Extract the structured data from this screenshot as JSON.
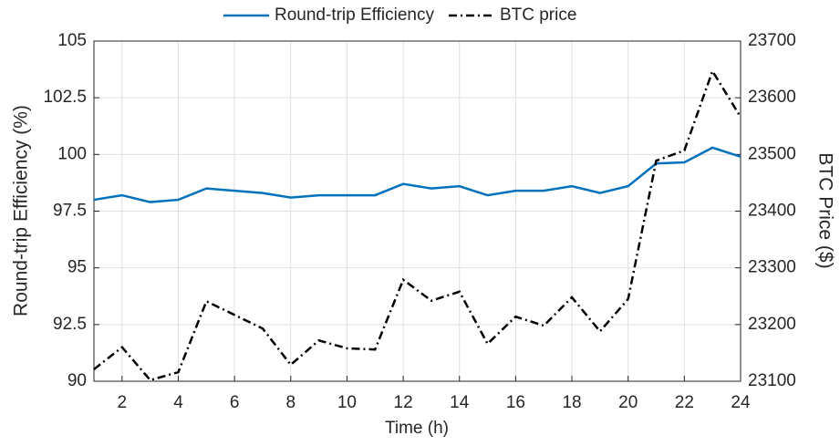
{
  "chart_data": {
    "type": "line",
    "xlabel": "Time (h)",
    "ylabel": "Round-trip Efficiency (%)",
    "y2label": "BTC Price ($)",
    "x": [
      1,
      2,
      3,
      4,
      5,
      6,
      7,
      8,
      9,
      10,
      11,
      12,
      13,
      14,
      15,
      16,
      17,
      18,
      19,
      20,
      21,
      22,
      23,
      24
    ],
    "xlim": [
      1,
      24
    ],
    "xticks": [
      2,
      4,
      6,
      8,
      10,
      12,
      14,
      16,
      18,
      20,
      22,
      24
    ],
    "ylim": [
      90,
      105
    ],
    "yticks": [
      90,
      92.5,
      95,
      97.5,
      100,
      102.5,
      105
    ],
    "y2lim": [
      23100,
      23700
    ],
    "y2ticks": [
      23100,
      23200,
      23300,
      23400,
      23500,
      23600,
      23700
    ],
    "grid": true,
    "legend": "top",
    "series": [
      {
        "name": "Round-trip Efficiency",
        "color": "#0072bd",
        "dash": "solid",
        "values": [
          98.0,
          98.2,
          97.9,
          98.0,
          98.5,
          98.4,
          98.3,
          98.1,
          98.2,
          98.2,
          98.2,
          98.7,
          98.5,
          98.6,
          98.2,
          98.4,
          98.4,
          98.6,
          98.3,
          98.6,
          99.6,
          99.65,
          100.3,
          99.9
        ]
      },
      {
        "name": "BTC price",
        "color": "#000000",
        "dash": "dashdot",
        "axis": "y2",
        "values": [
          23121,
          23160,
          23102,
          23116,
          23241,
          23217,
          23193,
          23129,
          23172,
          23158,
          23156,
          23279,
          23242,
          23258,
          23166,
          23214,
          23198,
          23248,
          23188,
          23245,
          23489,
          23507,
          23647,
          23566
        ]
      }
    ]
  }
}
